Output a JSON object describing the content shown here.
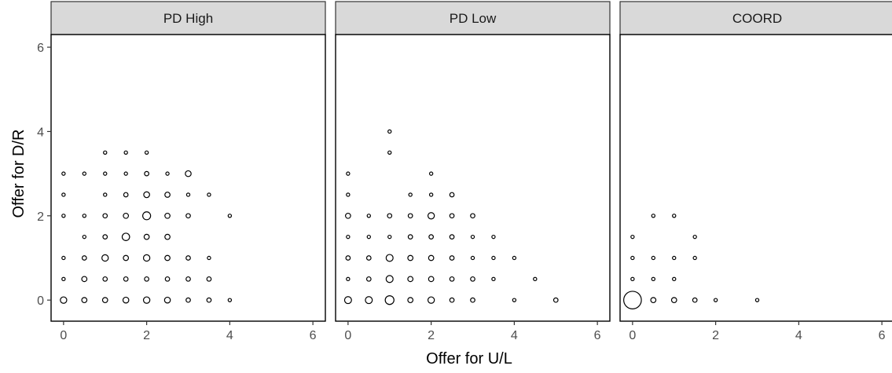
{
  "chart_data": {
    "type": "scatter",
    "encoding": "bubble",
    "xlabel": "Offer for U/L",
    "ylabel": "Offer for D/R",
    "xlim": [
      -0.3,
      6.3
    ],
    "ylim": [
      -0.5,
      6.3
    ],
    "x_ticks": [
      0,
      2,
      4,
      6
    ],
    "y_ticks": [
      0,
      2,
      4,
      6
    ],
    "grid": false,
    "colors": {
      "point_stroke": "#000000",
      "strip_fill": "#d9d9d9",
      "frame": "#000000"
    },
    "panels": [
      {
        "title": "PD High",
        "points": [
          {
            "x": 0,
            "y": 0,
            "size": 5
          },
          {
            "x": 0.5,
            "y": 0,
            "size": 3
          },
          {
            "x": 1,
            "y": 0,
            "size": 3
          },
          {
            "x": 1.5,
            "y": 0,
            "size": 4
          },
          {
            "x": 2,
            "y": 0,
            "size": 5
          },
          {
            "x": 2.5,
            "y": 0,
            "size": 4
          },
          {
            "x": 3,
            "y": 0,
            "size": 2
          },
          {
            "x": 3.5,
            "y": 0,
            "size": 2
          },
          {
            "x": 4,
            "y": 0,
            "size": 1
          },
          {
            "x": 0,
            "y": 0.5,
            "size": 1
          },
          {
            "x": 0.5,
            "y": 0.5,
            "size": 3
          },
          {
            "x": 1,
            "y": 0.5,
            "size": 2
          },
          {
            "x": 1.5,
            "y": 0.5,
            "size": 2
          },
          {
            "x": 2,
            "y": 0.5,
            "size": 2
          },
          {
            "x": 2.5,
            "y": 0.5,
            "size": 2
          },
          {
            "x": 3,
            "y": 0.5,
            "size": 2
          },
          {
            "x": 3.5,
            "y": 0.5,
            "size": 2
          },
          {
            "x": 0,
            "y": 1,
            "size": 1
          },
          {
            "x": 0.5,
            "y": 1,
            "size": 2
          },
          {
            "x": 1,
            "y": 1,
            "size": 5
          },
          {
            "x": 1.5,
            "y": 1,
            "size": 3
          },
          {
            "x": 2,
            "y": 1,
            "size": 5
          },
          {
            "x": 2.5,
            "y": 1,
            "size": 3
          },
          {
            "x": 3,
            "y": 1,
            "size": 2
          },
          {
            "x": 3.5,
            "y": 1,
            "size": 1
          },
          {
            "x": 0.5,
            "y": 1.5,
            "size": 1
          },
          {
            "x": 1,
            "y": 1.5,
            "size": 2
          },
          {
            "x": 1.5,
            "y": 1.5,
            "size": 7
          },
          {
            "x": 2,
            "y": 1.5,
            "size": 3
          },
          {
            "x": 2.5,
            "y": 1.5,
            "size": 3
          },
          {
            "x": 0,
            "y": 2,
            "size": 1
          },
          {
            "x": 0.5,
            "y": 2,
            "size": 1
          },
          {
            "x": 1,
            "y": 2,
            "size": 2
          },
          {
            "x": 1.5,
            "y": 2,
            "size": 3
          },
          {
            "x": 2,
            "y": 2,
            "size": 8
          },
          {
            "x": 2.5,
            "y": 2,
            "size": 3
          },
          {
            "x": 3,
            "y": 2,
            "size": 2
          },
          {
            "x": 4,
            "y": 2,
            "size": 1
          },
          {
            "x": 0,
            "y": 2.5,
            "size": 1
          },
          {
            "x": 1,
            "y": 2.5,
            "size": 1
          },
          {
            "x": 1.5,
            "y": 2.5,
            "size": 2
          },
          {
            "x": 2,
            "y": 2.5,
            "size": 4
          },
          {
            "x": 2.5,
            "y": 2.5,
            "size": 3
          },
          {
            "x": 3,
            "y": 2.5,
            "size": 1
          },
          {
            "x": 3.5,
            "y": 2.5,
            "size": 1
          },
          {
            "x": 0,
            "y": 3,
            "size": 1
          },
          {
            "x": 0.5,
            "y": 3,
            "size": 1
          },
          {
            "x": 1,
            "y": 3,
            "size": 1
          },
          {
            "x": 1.5,
            "y": 3,
            "size": 1
          },
          {
            "x": 2,
            "y": 3,
            "size": 2
          },
          {
            "x": 2.5,
            "y": 3,
            "size": 1
          },
          {
            "x": 3,
            "y": 3,
            "size": 4
          },
          {
            "x": 1,
            "y": 3.5,
            "size": 1
          },
          {
            "x": 1.5,
            "y": 3.5,
            "size": 1
          },
          {
            "x": 2,
            "y": 3.5,
            "size": 1
          }
        ]
      },
      {
        "title": "PD Low",
        "points": [
          {
            "x": 0,
            "y": 0,
            "size": 6
          },
          {
            "x": 0.5,
            "y": 0,
            "size": 6
          },
          {
            "x": 1,
            "y": 0,
            "size": 10
          },
          {
            "x": 1.5,
            "y": 0,
            "size": 3
          },
          {
            "x": 2,
            "y": 0,
            "size": 5
          },
          {
            "x": 2.5,
            "y": 0,
            "size": 2
          },
          {
            "x": 3,
            "y": 0,
            "size": 2
          },
          {
            "x": 4,
            "y": 0,
            "size": 1
          },
          {
            "x": 5,
            "y": 0,
            "size": 2
          },
          {
            "x": 0,
            "y": 0.5,
            "size": 1
          },
          {
            "x": 0.5,
            "y": 0.5,
            "size": 2
          },
          {
            "x": 1,
            "y": 0.5,
            "size": 6
          },
          {
            "x": 1.5,
            "y": 0.5,
            "size": 3
          },
          {
            "x": 2,
            "y": 0.5,
            "size": 3
          },
          {
            "x": 2.5,
            "y": 0.5,
            "size": 2
          },
          {
            "x": 3,
            "y": 0.5,
            "size": 2
          },
          {
            "x": 3.5,
            "y": 0.5,
            "size": 1
          },
          {
            "x": 4.5,
            "y": 0.5,
            "size": 1
          },
          {
            "x": 0,
            "y": 1,
            "size": 2
          },
          {
            "x": 0.5,
            "y": 1,
            "size": 2
          },
          {
            "x": 1,
            "y": 1,
            "size": 6
          },
          {
            "x": 1.5,
            "y": 1,
            "size": 3
          },
          {
            "x": 2,
            "y": 1,
            "size": 3
          },
          {
            "x": 2.5,
            "y": 1,
            "size": 2
          },
          {
            "x": 3,
            "y": 1,
            "size": 1
          },
          {
            "x": 3.5,
            "y": 1,
            "size": 1
          },
          {
            "x": 4,
            "y": 1,
            "size": 1
          },
          {
            "x": 0,
            "y": 1.5,
            "size": 1
          },
          {
            "x": 0.5,
            "y": 1.5,
            "size": 1
          },
          {
            "x": 1,
            "y": 1.5,
            "size": 1
          },
          {
            "x": 1.5,
            "y": 1.5,
            "size": 2
          },
          {
            "x": 2,
            "y": 1.5,
            "size": 2
          },
          {
            "x": 2.5,
            "y": 1.5,
            "size": 2
          },
          {
            "x": 3,
            "y": 1.5,
            "size": 1
          },
          {
            "x": 3.5,
            "y": 1.5,
            "size": 1
          },
          {
            "x": 0,
            "y": 2,
            "size": 3
          },
          {
            "x": 0.5,
            "y": 2,
            "size": 1
          },
          {
            "x": 1,
            "y": 2,
            "size": 2
          },
          {
            "x": 1.5,
            "y": 2,
            "size": 2
          },
          {
            "x": 2,
            "y": 2,
            "size": 5
          },
          {
            "x": 2.5,
            "y": 2,
            "size": 2
          },
          {
            "x": 3,
            "y": 2,
            "size": 2
          },
          {
            "x": 0,
            "y": 2.5,
            "size": 1
          },
          {
            "x": 1.5,
            "y": 2.5,
            "size": 1
          },
          {
            "x": 2,
            "y": 2.5,
            "size": 1
          },
          {
            "x": 2.5,
            "y": 2.5,
            "size": 2
          },
          {
            "x": 0,
            "y": 3,
            "size": 1
          },
          {
            "x": 2,
            "y": 3,
            "size": 1
          },
          {
            "x": 1,
            "y": 3.5,
            "size": 1
          },
          {
            "x": 1,
            "y": 4,
            "size": 1
          }
        ]
      },
      {
        "title": "COORD",
        "points": [
          {
            "x": 0,
            "y": 0,
            "size": 45
          },
          {
            "x": 0.5,
            "y": 0,
            "size": 3
          },
          {
            "x": 1,
            "y": 0,
            "size": 3
          },
          {
            "x": 1.5,
            "y": 0,
            "size": 2
          },
          {
            "x": 2,
            "y": 0,
            "size": 1
          },
          {
            "x": 3,
            "y": 0,
            "size": 1
          },
          {
            "x": 0,
            "y": 0.5,
            "size": 1
          },
          {
            "x": 0.5,
            "y": 0.5,
            "size": 1
          },
          {
            "x": 1,
            "y": 0.5,
            "size": 1
          },
          {
            "x": 0,
            "y": 1,
            "size": 1
          },
          {
            "x": 0.5,
            "y": 1,
            "size": 1
          },
          {
            "x": 1,
            "y": 1,
            "size": 1
          },
          {
            "x": 1.5,
            "y": 1,
            "size": 1
          },
          {
            "x": 0,
            "y": 1.5,
            "size": 1
          },
          {
            "x": 1.5,
            "y": 1.5,
            "size": 1
          },
          {
            "x": 0.5,
            "y": 2,
            "size": 1
          },
          {
            "x": 1,
            "y": 2,
            "size": 1
          }
        ]
      }
    ]
  }
}
